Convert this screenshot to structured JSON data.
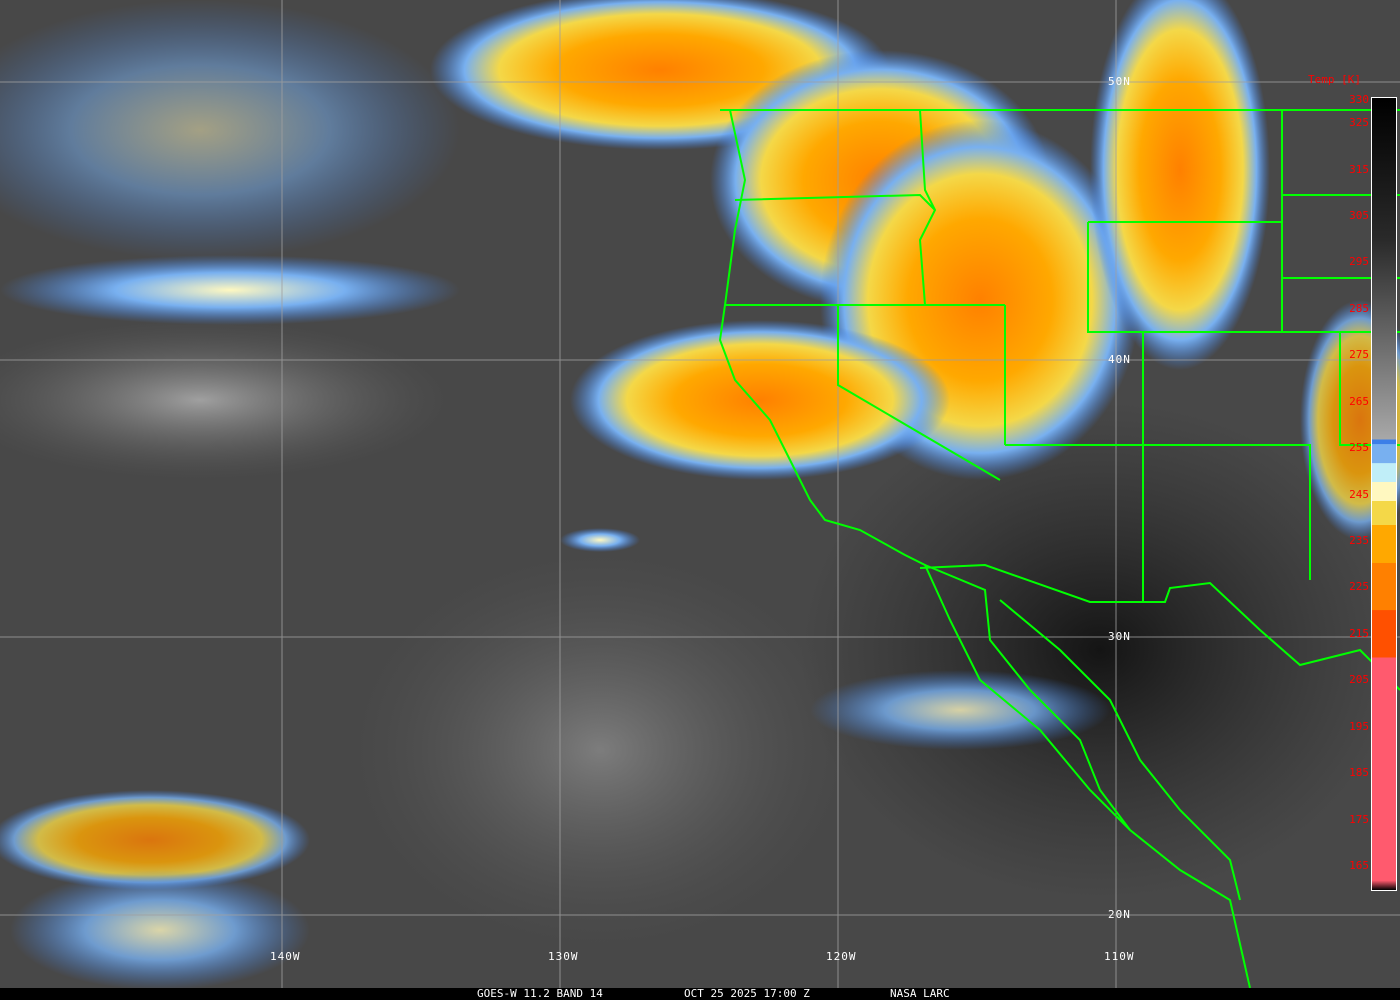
{
  "caption": {
    "product": "GOES-W 11.2 BAND 14",
    "datetime": "OCT 25 2025 17:00 Z",
    "source": "NASA LARC"
  },
  "colorbar": {
    "title": "Temp [K]",
    "ticks": [
      "330",
      "325",
      "315",
      "305",
      "295",
      "285",
      "275",
      "265",
      "255",
      "245",
      "235",
      "225",
      "215",
      "205",
      "195",
      "185",
      "175",
      "165"
    ],
    "stops": [
      {
        "k": 330,
        "color": "#000000"
      },
      {
        "k": 300,
        "color": "#2a2a2a"
      },
      {
        "k": 258,
        "color": "#a8a8a8"
      },
      {
        "k": 257,
        "color": "#3c7fe8"
      },
      {
        "k": 253,
        "color": "#78b0f0"
      },
      {
        "k": 249,
        "color": "#c0eef8"
      },
      {
        "k": 245,
        "color": "#fff8c0"
      },
      {
        "k": 240,
        "color": "#f4d848"
      },
      {
        "k": 232,
        "color": "#ffa800"
      },
      {
        "k": 222,
        "color": "#ff8000"
      },
      {
        "k": 212,
        "color": "#ff5000"
      },
      {
        "k": 202,
        "color": "#ff5a6e"
      },
      {
        "k": 165,
        "color": "#ff5a6e"
      },
      {
        "k": 163,
        "color": "#000000"
      }
    ]
  },
  "grid": {
    "latitudes": [
      "50N",
      "40N",
      "30N",
      "20N"
    ],
    "longitudes": [
      "140W",
      "130W",
      "120W",
      "110W"
    ]
  },
  "colors": {
    "borders": "#00ff00",
    "grid": "#a0a0a0",
    "labels": "#ff0000"
  }
}
